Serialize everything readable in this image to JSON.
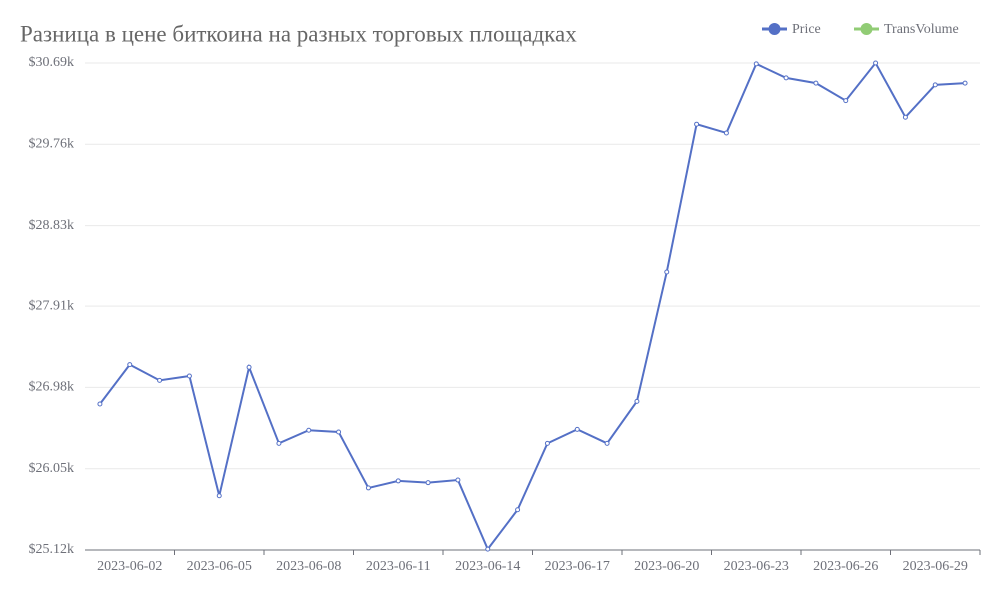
{
  "chart_data": {
    "type": "line",
    "title": "Разница в цене биткоина на разных торговых площадках",
    "categories": [
      null,
      "2023-06-02",
      null,
      null,
      "2023-06-05",
      null,
      null,
      "2023-06-08",
      null,
      null,
      "2023-06-11",
      null,
      null,
      "2023-06-14",
      null,
      null,
      "2023-06-17",
      null,
      null,
      "2023-06-20",
      null,
      null,
      "2023-06-23",
      null,
      null,
      "2023-06-26",
      null,
      null,
      "2023-06-29",
      null
    ],
    "series": [
      {
        "name": "Price",
        "color": "#5470c6",
        "values": [
          26790,
          27240,
          27060,
          27110,
          25740,
          27210,
          26340,
          26490,
          26470,
          25830,
          25910,
          25890,
          25920,
          25130,
          25580,
          26340,
          26500,
          26340,
          26820,
          28300,
          29990,
          29890,
          30680,
          30520,
          30460,
          30260,
          30690,
          30070,
          30440,
          30460
        ]
      }
    ],
    "legend": [
      {
        "name": "Price",
        "color": "#5470c6"
      },
      {
        "name": "TransVolume",
        "color": "#91cc75"
      }
    ],
    "ylim": [
      25120,
      30690
    ],
    "yticks": [
      {
        "value": 25120,
        "label": "$25.12k"
      },
      {
        "value": 26050,
        "label": "$26.05k"
      },
      {
        "value": 26980,
        "label": "$26.98k"
      },
      {
        "value": 27910,
        "label": "$27.91k"
      },
      {
        "value": 28830,
        "label": "$28.83k"
      },
      {
        "value": 29760,
        "label": "$29.76k"
      },
      {
        "value": 30690,
        "label": "$30.69k"
      }
    ],
    "grid": true
  }
}
